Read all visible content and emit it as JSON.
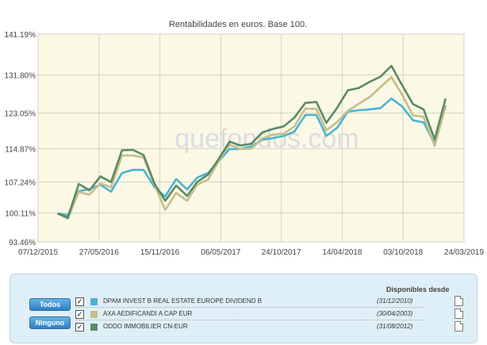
{
  "chart_data": {
    "type": "line",
    "title": "Rentabilidades en euros. Base 100.",
    "watermark": "quefondos.com",
    "ylim": [
      93.46,
      141.19
    ],
    "yticks": [
      "93.46%",
      "100.11%",
      "107.24%",
      "114.87%",
      "123.05%",
      "131.80%",
      "141.19%"
    ],
    "ytick_values": [
      93.46,
      100.11,
      107.24,
      114.87,
      123.05,
      131.8,
      141.19
    ],
    "xticks": [
      "07/12/2015",
      "27/05/2016",
      "15/11/2016",
      "06/05/2017",
      "24/10/2017",
      "14/04/2018",
      "03/10/2018",
      "24/03/2019"
    ],
    "x": [
      "2016-01-31",
      "2016-02-29",
      "2016-03-31",
      "2016-04-30",
      "2016-05-31",
      "2016-06-30",
      "2016-07-31",
      "2016-08-31",
      "2016-09-30",
      "2016-10-31",
      "2016-11-30",
      "2016-12-31",
      "2017-01-31",
      "2017-02-28",
      "2017-03-31",
      "2017-04-30",
      "2017-05-31",
      "2017-06-30",
      "2017-07-31",
      "2017-08-31",
      "2017-09-30",
      "2017-10-31",
      "2017-11-30",
      "2017-12-31",
      "2018-01-31",
      "2018-02-28",
      "2018-03-31",
      "2018-04-30",
      "2018-05-31",
      "2018-06-30",
      "2018-07-31",
      "2018-08-31",
      "2018-09-30",
      "2018-10-31",
      "2018-11-30",
      "2018-12-31",
      "2019-01-31"
    ],
    "grid": true,
    "plot_background": "#fbf9e6",
    "series": [
      {
        "name": "DPAM INVEST B REAL ESTATE EUROPE DIVIDEND B",
        "color": "#4bb3d0",
        "values": [
          100.0,
          99.6,
          105.1,
          105.6,
          106.6,
          105.0,
          109.3,
          110.0,
          110.0,
          106.0,
          103.9,
          107.9,
          105.5,
          108.2,
          109.3,
          112.0,
          114.8,
          114.8,
          115.4,
          116.9,
          117.3,
          117.8,
          118.8,
          122.6,
          122.6,
          117.8,
          119.7,
          123.4,
          123.7,
          123.9,
          124.2,
          126.4,
          124.6,
          121.4,
          120.9,
          116.0,
          124.8
        ]
      },
      {
        "name": "AXA AEDIFICANDI A CAP EUR",
        "color": "#c6bd8b",
        "values": [
          100.0,
          98.8,
          104.9,
          104.3,
          106.9,
          106.0,
          113.3,
          113.3,
          112.9,
          106.5,
          100.8,
          104.7,
          102.9,
          106.6,
          107.8,
          112.0,
          115.8,
          114.8,
          114.9,
          117.2,
          118.1,
          118.3,
          120.0,
          124.1,
          124.0,
          119.1,
          121.0,
          123.6,
          125.2,
          126.7,
          129.0,
          131.3,
          127.3,
          122.5,
          122.2,
          115.5,
          124.6
        ]
      },
      {
        "name": "ODDO IMMOBILIER CN-EUR",
        "color": "#5b8a66",
        "values": [
          100.0,
          99.0,
          106.8,
          105.3,
          108.5,
          107.2,
          114.5,
          114.6,
          113.4,
          106.8,
          102.9,
          106.4,
          104.0,
          107.2,
          108.9,
          112.5,
          116.5,
          115.6,
          116.0,
          118.6,
          119.4,
          120.0,
          122.0,
          125.4,
          125.6,
          120.8,
          124.3,
          128.3,
          128.8,
          130.2,
          131.4,
          133.9,
          129.5,
          125.1,
          123.9,
          117.0,
          126.4
        ]
      }
    ]
  },
  "legend": {
    "header": "Disponibles desde",
    "btn_todos": "Todos",
    "btn_ninguno": "Ninguno",
    "items": [
      {
        "name": "DPAM INVEST B REAL ESTATE EUROPE DIVIDEND B",
        "date": "(31/12/2010)",
        "color": "#4bb3d0",
        "checked": true
      },
      {
        "name": "AXA AEDIFICANDI A CAP EUR",
        "date": "(30/04/2003)",
        "color": "#c6bd8b",
        "checked": true
      },
      {
        "name": "ODDO IMMOBILIER CN-EUR",
        "date": "(31/08/2012)",
        "color": "#5b8a66",
        "checked": true
      }
    ]
  }
}
